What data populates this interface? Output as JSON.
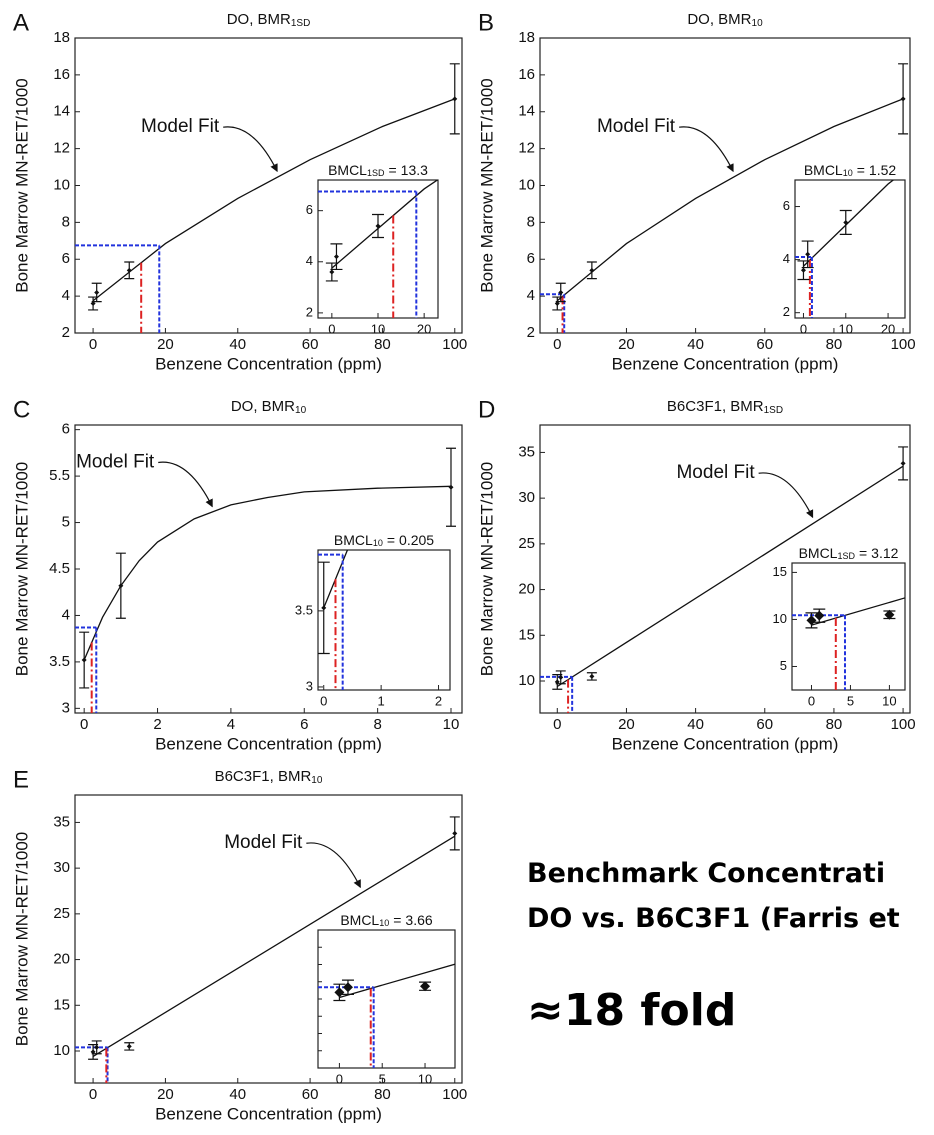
{
  "chart_data": [
    {
      "type": "scatter",
      "panel": "A",
      "title": "DO, BMR",
      "title_sub": "1SD",
      "xlabel": "Benzene Concentration (ppm)",
      "ylabel": "Bone Marrow MN-RET/1000",
      "x": [
        0,
        1,
        10,
        100
      ],
      "y": [
        3.6,
        4.2,
        5.4,
        14.7
      ],
      "err": [
        0.35,
        0.5,
        0.45,
        1.9
      ],
      "fit": {
        "x": [
          0,
          10,
          20,
          40,
          60,
          80,
          100
        ],
        "y": [
          3.75,
          5.3,
          6.85,
          9.3,
          11.4,
          13.2,
          14.7
        ]
      },
      "annotation": "Model Fit",
      "bmc": 18.3,
      "bmcl": 13.3,
      "bmr_response": 6.75,
      "bmc_color": "#2233dd",
      "bmcl_color": "#dd2222",
      "xlim": [
        -5,
        102
      ],
      "xticks": [
        0,
        20,
        40,
        60,
        80,
        100
      ],
      "ylim": [
        2,
        18
      ],
      "yticks": [
        2,
        4,
        6,
        8,
        10,
        12,
        14,
        16,
        18
      ],
      "inset": {
        "label": "BMCL",
        "label_sub": "1SD",
        "label_eq": "=",
        "xlim": [
          -3,
          23
        ],
        "xticks": [
          0,
          10,
          20
        ],
        "ylim": [
          1.8,
          7.2
        ],
        "yticks": [
          2,
          4,
          6
        ]
      }
    },
    {
      "type": "scatter",
      "panel": "B",
      "title": "DO, BMR",
      "title_sub": "10",
      "xlabel": "Benzene Concentration (ppm)",
      "ylabel": "Bone Marrow MN-RET/1000",
      "x": [
        0,
        1,
        10,
        100
      ],
      "y": [
        3.6,
        4.2,
        5.4,
        14.7
      ],
      "err": [
        0.35,
        0.5,
        0.45,
        1.9
      ],
      "fit": {
        "x": [
          0,
          10,
          20,
          40,
          60,
          80,
          100
        ],
        "y": [
          3.75,
          5.3,
          6.85,
          9.3,
          11.4,
          13.2,
          14.7
        ]
      },
      "annotation": "Model Fit",
      "bmc": 2.0,
      "bmcl": 1.52,
      "bmr_response": 4.1,
      "bmc_color": "#2233dd",
      "bmcl_color": "#dd2222",
      "xlim": [
        -5,
        102
      ],
      "xticks": [
        0,
        20,
        40,
        60,
        80,
        100
      ],
      "ylim": [
        2,
        18
      ],
      "yticks": [
        2,
        4,
        6,
        8,
        10,
        12,
        14,
        16,
        18
      ],
      "inset": {
        "label": "BMCL",
        "label_sub": "10",
        "label_eq": "=",
        "xlim": [
          -2,
          24
        ],
        "xticks": [
          0,
          10,
          20
        ],
        "ylim": [
          1.8,
          7
        ],
        "yticks": [
          2,
          4,
          6
        ]
      }
    },
    {
      "type": "scatter",
      "panel": "C",
      "title": "DO, BMR",
      "title_sub": "10",
      "xlabel": "Benzene Concentration (ppm)",
      "ylabel": "Bone Marrow MN-RET/1000",
      "x": [
        0,
        1,
        10
      ],
      "y": [
        3.52,
        4.32,
        5.38
      ],
      "err": [
        0.3,
        0.35,
        0.42
      ],
      "fit": {
        "x": [
          0,
          0.5,
          1,
          1.5,
          2,
          3,
          4,
          5,
          6,
          8,
          10
        ],
        "y": [
          3.52,
          3.98,
          4.32,
          4.59,
          4.79,
          5.04,
          5.19,
          5.27,
          5.33,
          5.37,
          5.39
        ]
      },
      "annotation": "Model Fit",
      "bmc": 0.33,
      "bmcl": 0.205,
      "bmr_response": 3.87,
      "bmc_color": "#2233dd",
      "bmcl_color": "#dd2222",
      "xlim": [
        -0.25,
        10.3
      ],
      "xticks": [
        0,
        2,
        4,
        6,
        8,
        10
      ],
      "ylim": [
        2.95,
        6.05
      ],
      "yticks": [
        3,
        3.5,
        4,
        4.5,
        5,
        5.5,
        6
      ],
      "inset": {
        "label": "BMCL",
        "label_sub": "10",
        "label_eq": "=",
        "xlim": [
          -0.1,
          2.2
        ],
        "xticks": [
          0,
          1,
          2
        ],
        "ylim": [
          2.98,
          3.9
        ],
        "yticks": [
          3,
          3.5
        ]
      }
    },
    {
      "type": "scatter",
      "panel": "D",
      "title": "B6C3F1, BMR",
      "title_sub": "1SD",
      "xlabel": "Benzene Concentration (ppm)",
      "ylabel": "Bone Marrow MN-RET/1000",
      "x": [
        0,
        1,
        10,
        100
      ],
      "y": [
        9.9,
        10.4,
        10.5,
        33.8
      ],
      "err": [
        0.8,
        0.7,
        0.4,
        1.8
      ],
      "fit": {
        "x": [
          0,
          100
        ],
        "y": [
          9.4,
          33.5
        ]
      },
      "annotation": "Model Fit",
      "bmc": 4.3,
      "bmcl": 3.12,
      "bmr_response": 10.45,
      "bmc_color": "#2233dd",
      "bmcl_color": "#dd2222",
      "xlim": [
        -5,
        102
      ],
      "xticks": [
        0,
        20,
        40,
        60,
        80,
        100
      ],
      "ylim": [
        6.5,
        38
      ],
      "yticks": [
        10,
        15,
        20,
        25,
        30,
        35
      ],
      "inset": {
        "label": "BMCL",
        "label_sub": "1SD",
        "label_eq": "=",
        "xlim": [
          -2.5,
          12
        ],
        "xticks": [
          0,
          5,
          10
        ],
        "ylim": [
          2.5,
          16
        ],
        "yticks": [
          5,
          10,
          15
        ]
      }
    },
    {
      "type": "scatter",
      "panel": "E",
      "title": "B6C3F1, BMR",
      "title_sub": "10",
      "xlabel": "Benzene Concentration (ppm)",
      "ylabel": "Bone Marrow MN-RET/1000",
      "x": [
        0,
        1,
        10,
        100
      ],
      "y": [
        9.9,
        10.4,
        10.5,
        33.8
      ],
      "err": [
        0.8,
        0.7,
        0.4,
        1.8
      ],
      "fit": {
        "x": [
          0,
          100
        ],
        "y": [
          9.4,
          33.5
        ]
      },
      "annotation": "Model Fit",
      "bmc": 4.0,
      "bmcl": 3.66,
      "bmr_response": 10.4,
      "bmc_color": "#2233dd",
      "bmcl_color": "#dd2222",
      "xlim": [
        -5,
        102
      ],
      "xticks": [
        0,
        20,
        40,
        60,
        80,
        100
      ],
      "ylim": [
        6.5,
        38
      ],
      "yticks": [
        10,
        15,
        20,
        25,
        30,
        35
      ],
      "inset": {
        "label": "BMCL",
        "label_sub": "10",
        "label_eq": "=",
        "xlim": [
          -2.5,
          13.5
        ],
        "xticks": [
          0,
          5,
          10
        ],
        "ylim": [
          2.5,
          16
        ]
      }
    }
  ],
  "side_text": {
    "line1": "Benchmark Concentrati",
    "line2": "DO vs. B6C3F1 (Farris et",
    "fold": "≈18 fold"
  }
}
